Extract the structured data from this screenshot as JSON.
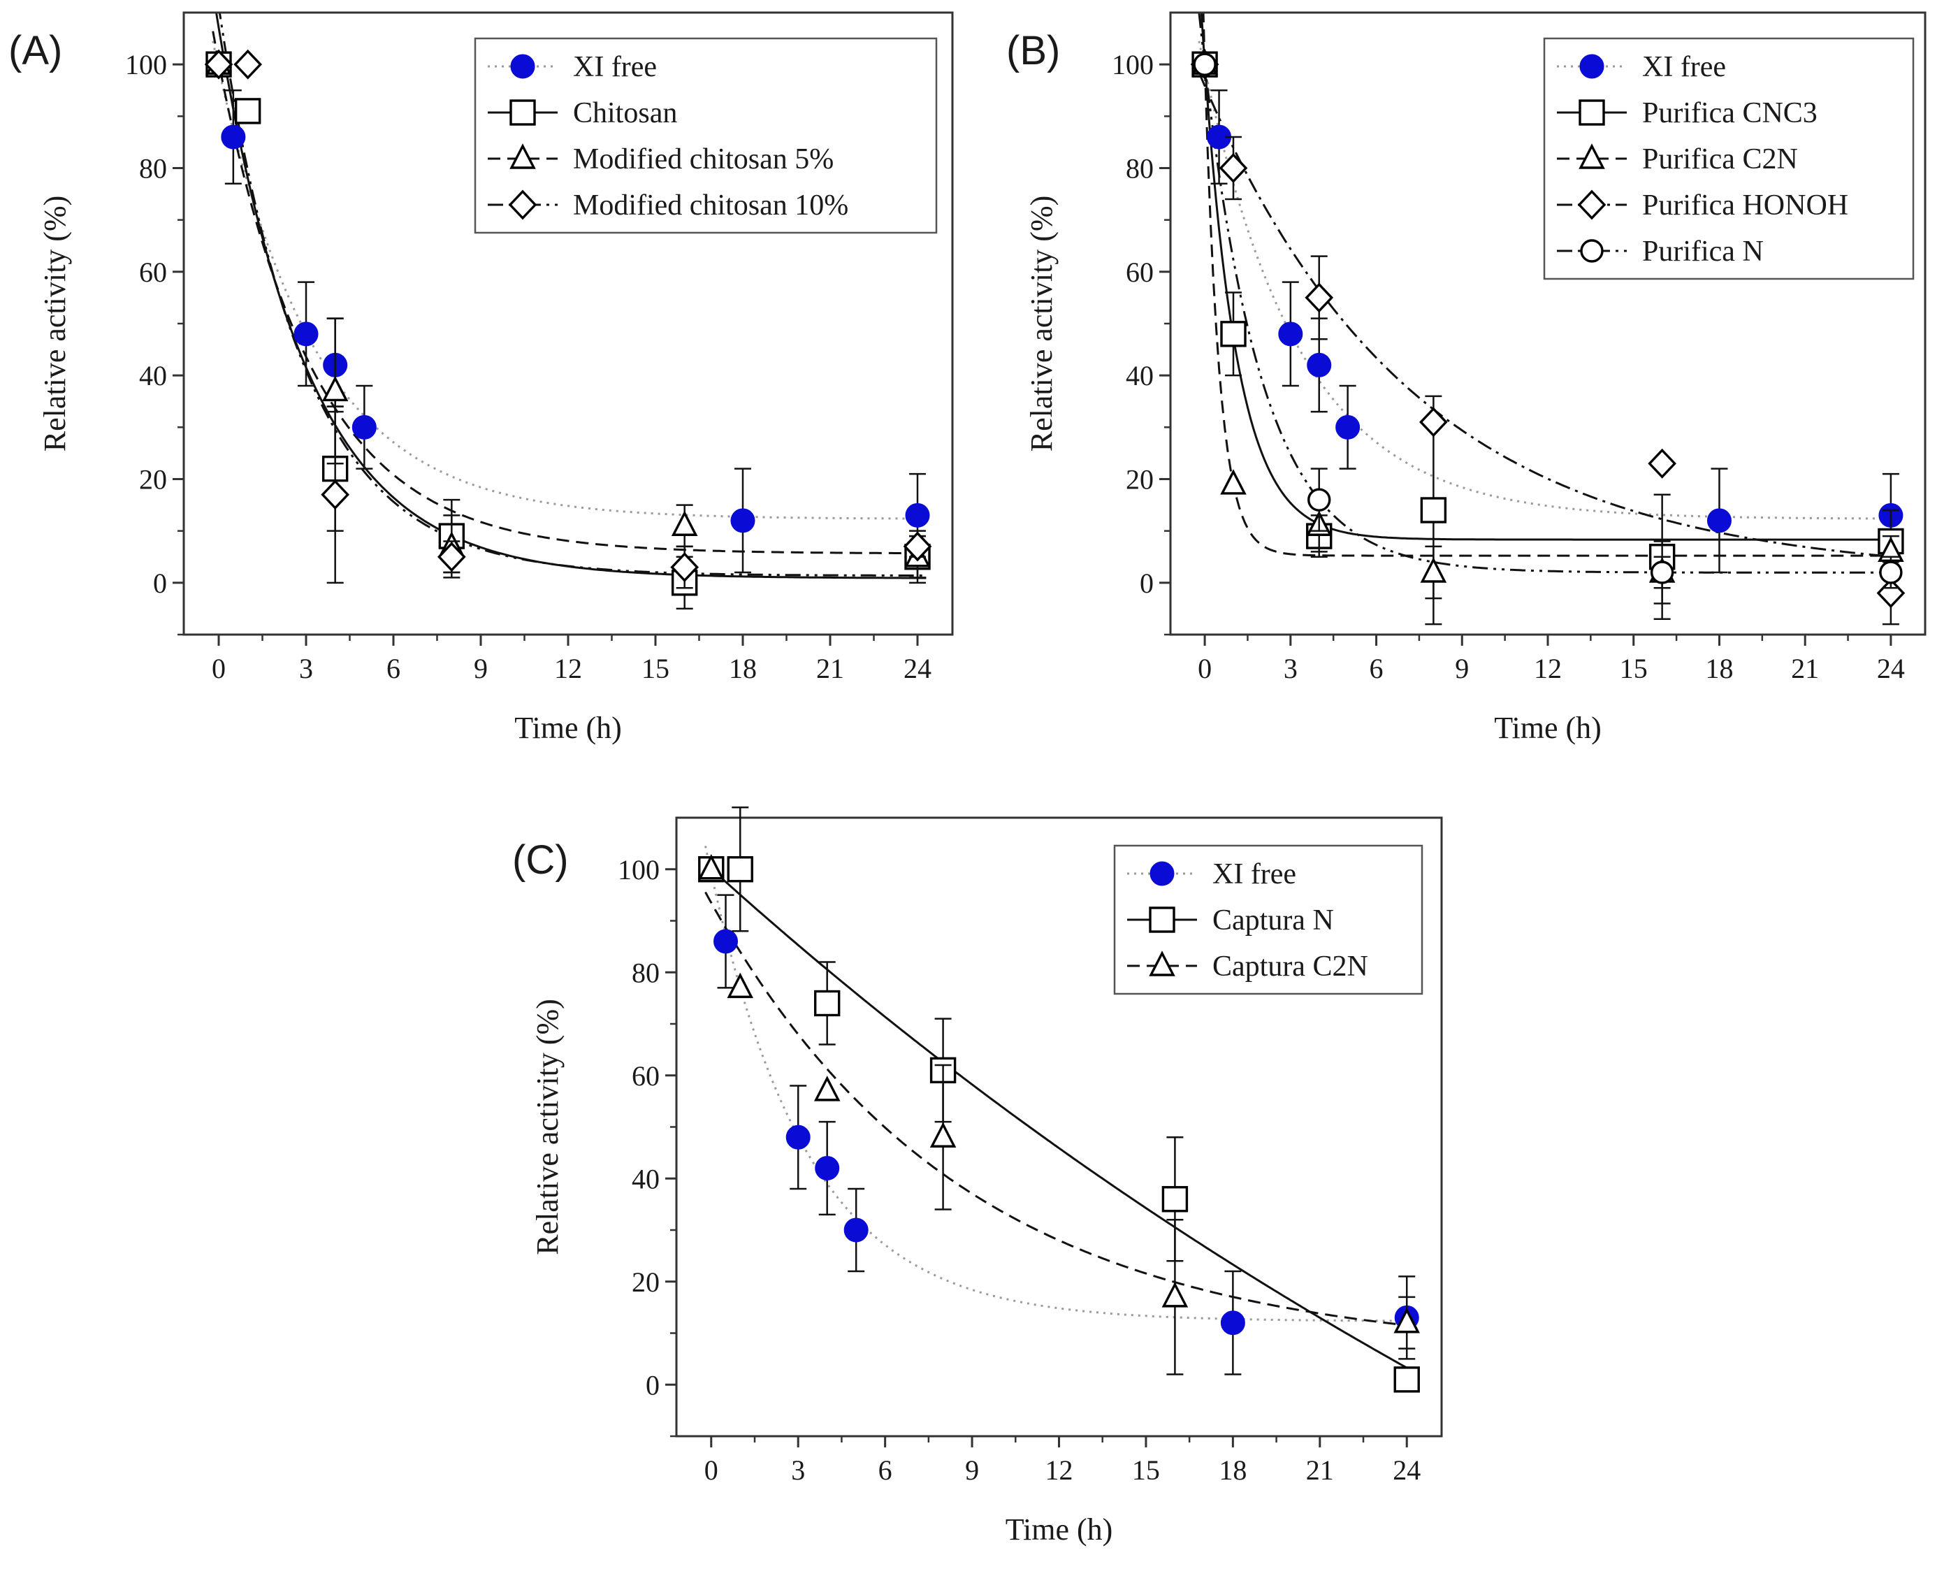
{
  "figure": {
    "panels": [
      {
        "id": "A",
        "label": "(A)"
      },
      {
        "id": "B",
        "label": "(B)"
      },
      {
        "id": "C",
        "label": "(C)"
      }
    ]
  },
  "chart_data": [
    {
      "type": "scatter",
      "panel": "(A)",
      "xlabel": "Time (h)",
      "ylabel": "Relative activity (%)",
      "xlim": [
        -1.2,
        25.2
      ],
      "ylim": [
        -10,
        110
      ],
      "xticks": [
        0,
        3,
        6,
        9,
        12,
        15,
        18,
        21,
        24
      ],
      "yticks": [
        0,
        20,
        40,
        60,
        80,
        100
      ],
      "legend_position": "top-right",
      "series": [
        {
          "name": "XI free",
          "marker": "circle-filled",
          "color": "#0b0bd6",
          "line_style": "dotted",
          "x": [
            0,
            0.5,
            3,
            4,
            5,
            18,
            24
          ],
          "y": [
            100,
            86,
            48,
            42,
            30,
            12,
            13
          ],
          "err": [
            0,
            9,
            10,
            9,
            8,
            10,
            8
          ],
          "fit": "exponential"
        },
        {
          "name": "Chitosan",
          "marker": "square",
          "color": "#000000",
          "line_style": "solid",
          "x": [
            0,
            1,
            4,
            8,
            16,
            24
          ],
          "y": [
            100,
            91,
            22,
            9,
            0,
            5
          ],
          "err": [
            0,
            0,
            12,
            7,
            5,
            4
          ],
          "fit": "exponential"
        },
        {
          "name": "Modified chitosan 5%",
          "marker": "triangle",
          "color": "#000000",
          "line_style": "dashed",
          "x": [
            0,
            4,
            8,
            16,
            24
          ],
          "y": [
            100,
            37,
            7,
            11,
            5
          ],
          "err": [
            0,
            14,
            6,
            4,
            5
          ],
          "fit": "exponential"
        },
        {
          "name": "Modified chitosan 10%",
          "marker": "diamond",
          "color": "#000000",
          "line_style": "dash-dot-dot",
          "x": [
            0,
            1,
            4,
            8,
            16,
            24
          ],
          "y": [
            100,
            100,
            17,
            5,
            3,
            7
          ],
          "err": [
            0,
            0,
            17,
            3,
            4,
            2
          ],
          "fit": "exponential"
        }
      ]
    },
    {
      "type": "scatter",
      "panel": "(B)",
      "xlabel": "Time (h)",
      "ylabel": "Relative activity (%)",
      "xlim": [
        -1.2,
        25.2
      ],
      "ylim": [
        -10,
        110
      ],
      "xticks": [
        0,
        3,
        6,
        9,
        12,
        15,
        18,
        21,
        24
      ],
      "yticks": [
        0,
        20,
        40,
        60,
        80,
        100
      ],
      "legend_position": "top-right",
      "series": [
        {
          "name": "XI free",
          "marker": "circle-filled",
          "color": "#0b0bd6",
          "line_style": "dotted",
          "x": [
            0,
            0.5,
            3,
            4,
            5,
            18,
            24
          ],
          "y": [
            100,
            86,
            48,
            42,
            30,
            12,
            13
          ],
          "err": [
            0,
            9,
            10,
            9,
            8,
            10,
            8
          ],
          "fit": "exponential"
        },
        {
          "name": "Purifica CNC3",
          "marker": "square",
          "color": "#000000",
          "line_style": "solid",
          "x": [
            0,
            1,
            4,
            8,
            16,
            24
          ],
          "y": [
            100,
            48,
            9,
            14,
            5,
            8
          ],
          "err": [
            0,
            8,
            4,
            22,
            12,
            6
          ],
          "fit": "exponential"
        },
        {
          "name": "Purifica C2N",
          "marker": "triangle",
          "color": "#000000",
          "line_style": "dashed",
          "x": [
            0,
            1,
            4,
            8,
            16,
            24
          ],
          "y": [
            100,
            19,
            11,
            2,
            2,
            6
          ],
          "err": [
            0,
            0,
            5,
            5,
            3,
            3
          ],
          "fit": "exponential"
        },
        {
          "name": "Purifica HONOH",
          "marker": "diamond",
          "color": "#000000",
          "line_style": "dash-dot",
          "x": [
            0,
            1,
            4,
            8,
            16,
            24
          ],
          "y": [
            100,
            80,
            55,
            31,
            23,
            -2
          ],
          "err": [
            0,
            6,
            8,
            0,
            0,
            6
          ],
          "fit": "exponential"
        },
        {
          "name": "Purifica N",
          "marker": "circle-open",
          "color": "#000000",
          "line_style": "dash-dot-dot",
          "x": [
            0,
            4,
            16,
            24
          ],
          "y": [
            100,
            16,
            2,
            2
          ],
          "err": [
            0,
            6,
            6,
            3
          ],
          "fit": "exponential"
        }
      ]
    },
    {
      "type": "scatter",
      "panel": "(C)",
      "xlabel": "Time (h)",
      "ylabel": "Relative activity (%)",
      "xlim": [
        -1.2,
        25.2
      ],
      "ylim": [
        -10,
        110
      ],
      "xticks": [
        0,
        3,
        6,
        9,
        12,
        15,
        18,
        21,
        24
      ],
      "yticks": [
        0,
        20,
        40,
        60,
        80,
        100
      ],
      "legend_position": "top-right",
      "series": [
        {
          "name": "XI free",
          "marker": "circle-filled",
          "color": "#0b0bd6",
          "line_style": "dotted",
          "x": [
            0,
            0.5,
            3,
            4,
            5,
            18,
            24
          ],
          "y": [
            100,
            86,
            48,
            42,
            30,
            12,
            13
          ],
          "err": [
            0,
            9,
            10,
            9,
            8,
            10,
            8
          ],
          "fit": "exponential"
        },
        {
          "name": "Captura N",
          "marker": "square",
          "color": "#000000",
          "line_style": "solid",
          "x": [
            0,
            1,
            4,
            8,
            16,
            24
          ],
          "y": [
            100,
            100,
            74,
            61,
            36,
            1
          ],
          "err": [
            0,
            12,
            8,
            10,
            12,
            0
          ],
          "fit": "exponential"
        },
        {
          "name": "Captura C2N",
          "marker": "triangle",
          "color": "#000000",
          "line_style": "dashed",
          "x": [
            0,
            1,
            4,
            8,
            16,
            24
          ],
          "y": [
            100,
            77,
            57,
            48,
            17,
            12
          ],
          "err": [
            0,
            0,
            0,
            14,
            15,
            5
          ],
          "fit": "exponential"
        }
      ]
    }
  ]
}
